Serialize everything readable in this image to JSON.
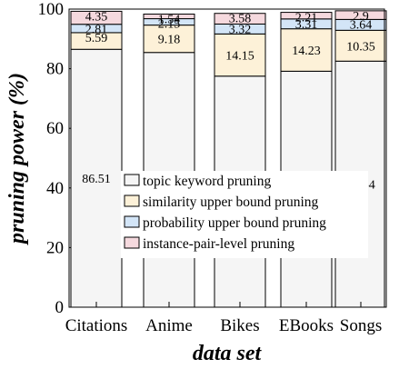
{
  "chart_data": {
    "type": "bar",
    "stacked": true,
    "categories": [
      "Citations",
      "Anime",
      "Bikes",
      "EBooks",
      "Songs"
    ],
    "series": [
      {
        "name": "topic keyword pruning",
        "values": [
          86.51,
          85.45,
          77.51,
          79.16,
          82.54
        ],
        "color": "#f5f5f5"
      },
      {
        "name": "similarity upper bound pruning",
        "values": [
          5.59,
          9.18,
          14.15,
          14.23,
          10.35
        ],
        "color": "#fdf1d8"
      },
      {
        "name": "probability upper bound pruning",
        "values": [
          2.81,
          2.15,
          3.32,
          3.31,
          3.64
        ],
        "color": "#d3e5f7"
      },
      {
        "name": "instance-pair-level pruning",
        "values": [
          4.35,
          1.54,
          3.58,
          2.21,
          2.9
        ],
        "color": "#f5d9de"
      }
    ],
    "xlabel": "data set",
    "ylabel": "pruning power (%)",
    "ylim": [
      0,
      100
    ],
    "yticks": [
      0,
      20,
      40,
      60,
      80,
      100
    ],
    "legend_position": "center"
  }
}
